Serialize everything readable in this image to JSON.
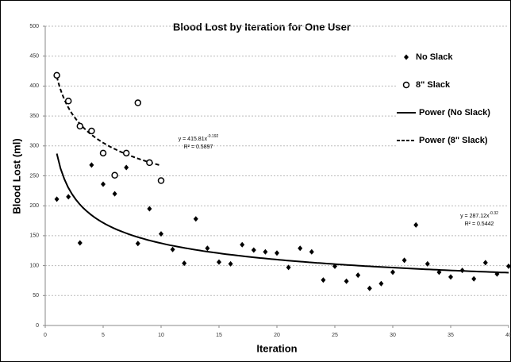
{
  "chart_data": {
    "type": "scatter",
    "title": "Blood Lost by Iteration for One User",
    "x_label": "Iteration",
    "y_label": "Blood Lost (ml)",
    "xlim": [
      0,
      40
    ],
    "xticks": [
      0,
      5,
      10,
      15,
      20,
      25,
      30,
      35,
      40
    ],
    "ylim": [
      0,
      500
    ],
    "yticks": [
      0,
      50,
      100,
      150,
      200,
      250,
      300,
      350,
      400,
      450,
      500
    ],
    "grid": true,
    "legend": "right",
    "series": [
      {
        "name": "No Slack",
        "marker": "diamond",
        "color": "#000000",
        "x": [
          1,
          2,
          3,
          4,
          5,
          6,
          7,
          8,
          9,
          10,
          11,
          12,
          13,
          14,
          15,
          16,
          17,
          18,
          19,
          20,
          21,
          22,
          23,
          24,
          25,
          26,
          27,
          28,
          29,
          30,
          31,
          32,
          33,
          34,
          35,
          36,
          37,
          38,
          39,
          40
        ],
        "values": [
          211,
          215,
          138,
          268,
          236,
          220,
          264,
          137,
          195,
          153,
          127,
          104,
          178,
          129,
          106,
          103,
          135,
          126,
          123,
          121,
          97,
          129,
          123,
          76,
          99,
          74,
          84,
          62,
          70,
          89,
          109,
          168,
          103,
          89,
          81,
          92,
          78,
          105,
          86,
          99
        ]
      },
      {
        "name": "8\" Slack",
        "marker": "circle",
        "color": "#000000",
        "x": [
          1,
          2,
          3,
          4,
          5,
          6,
          7,
          8,
          9,
          10
        ],
        "values": [
          418,
          375,
          333,
          325,
          288,
          251,
          288,
          372,
          272,
          242
        ]
      }
    ],
    "trendlines": [
      {
        "name": "Power (No Slack)",
        "style": "solid",
        "coefficient": 287.12,
        "exponent": -0.32,
        "xrange": [
          1,
          40
        ],
        "equation": "y = 287.12x",
        "exponent_label": "-0.32",
        "r2_label": "R² = 0.5442"
      },
      {
        "name": "Power (8\" Slack)",
        "style": "dashed",
        "coefficient": 415.81,
        "exponent": -0.192,
        "xrange": [
          1,
          10
        ],
        "equation": "y = 415.81x",
        "exponent_label": "-0.192",
        "r2_label": "R² = 0.5897"
      }
    ]
  }
}
